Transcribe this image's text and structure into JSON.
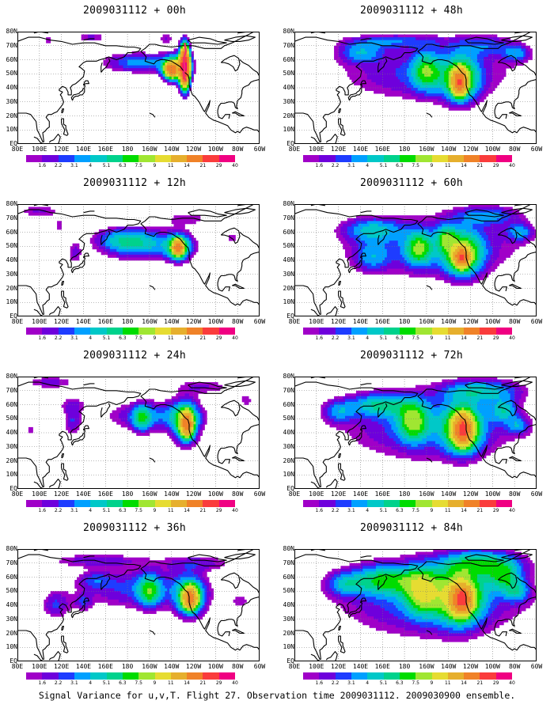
{
  "figure": {
    "caption": "Signal Variance for u,v,T. Flight 27. Observation time 2009031112. 2009030900 ensemble."
  },
  "panels": [
    {
      "title": "2009031112 + 00h",
      "lead_hours": 0
    },
    {
      "title": "2009031112 + 48h",
      "lead_hours": 48
    },
    {
      "title": "2009031112 + 12h",
      "lead_hours": 12
    },
    {
      "title": "2009031112 + 60h",
      "lead_hours": 60
    },
    {
      "title": "2009031112 + 24h",
      "lead_hours": 24
    },
    {
      "title": "2009031112 + 72h",
      "lead_hours": 72
    },
    {
      "title": "2009031112 + 36h",
      "lead_hours": 36
    },
    {
      "title": "2009031112 + 84h",
      "lead_hours": 84
    }
  ],
  "map_axes": {
    "lat_labels": [
      "80N",
      "70N",
      "60N",
      "50N",
      "40N",
      "30N",
      "20N",
      "10N",
      "EQ"
    ],
    "lon_labels": [
      "80E",
      "100E",
      "120E",
      "140E",
      "160E",
      "180",
      "160W",
      "140W",
      "120W",
      "100W",
      "80W",
      "60W"
    ],
    "lat_range": [
      0,
      80
    ],
    "lon_range_east": [
      80,
      300
    ],
    "grid": true
  },
  "colorbar": {
    "levels": [
      "1.6",
      "2.2",
      "3.1",
      "4",
      "5.1",
      "6.3",
      "7.5",
      "9",
      "11",
      "14",
      "21",
      "29",
      "40"
    ],
    "colors": [
      "#a000c8",
      "#6e00dc",
      "#1e3cff",
      "#00a0ff",
      "#00c8c8",
      "#00d28c",
      "#00dc00",
      "#a0e632",
      "#e6dc32",
      "#e6af2d",
      "#f08228",
      "#fa3c3c",
      "#f00082"
    ]
  }
}
